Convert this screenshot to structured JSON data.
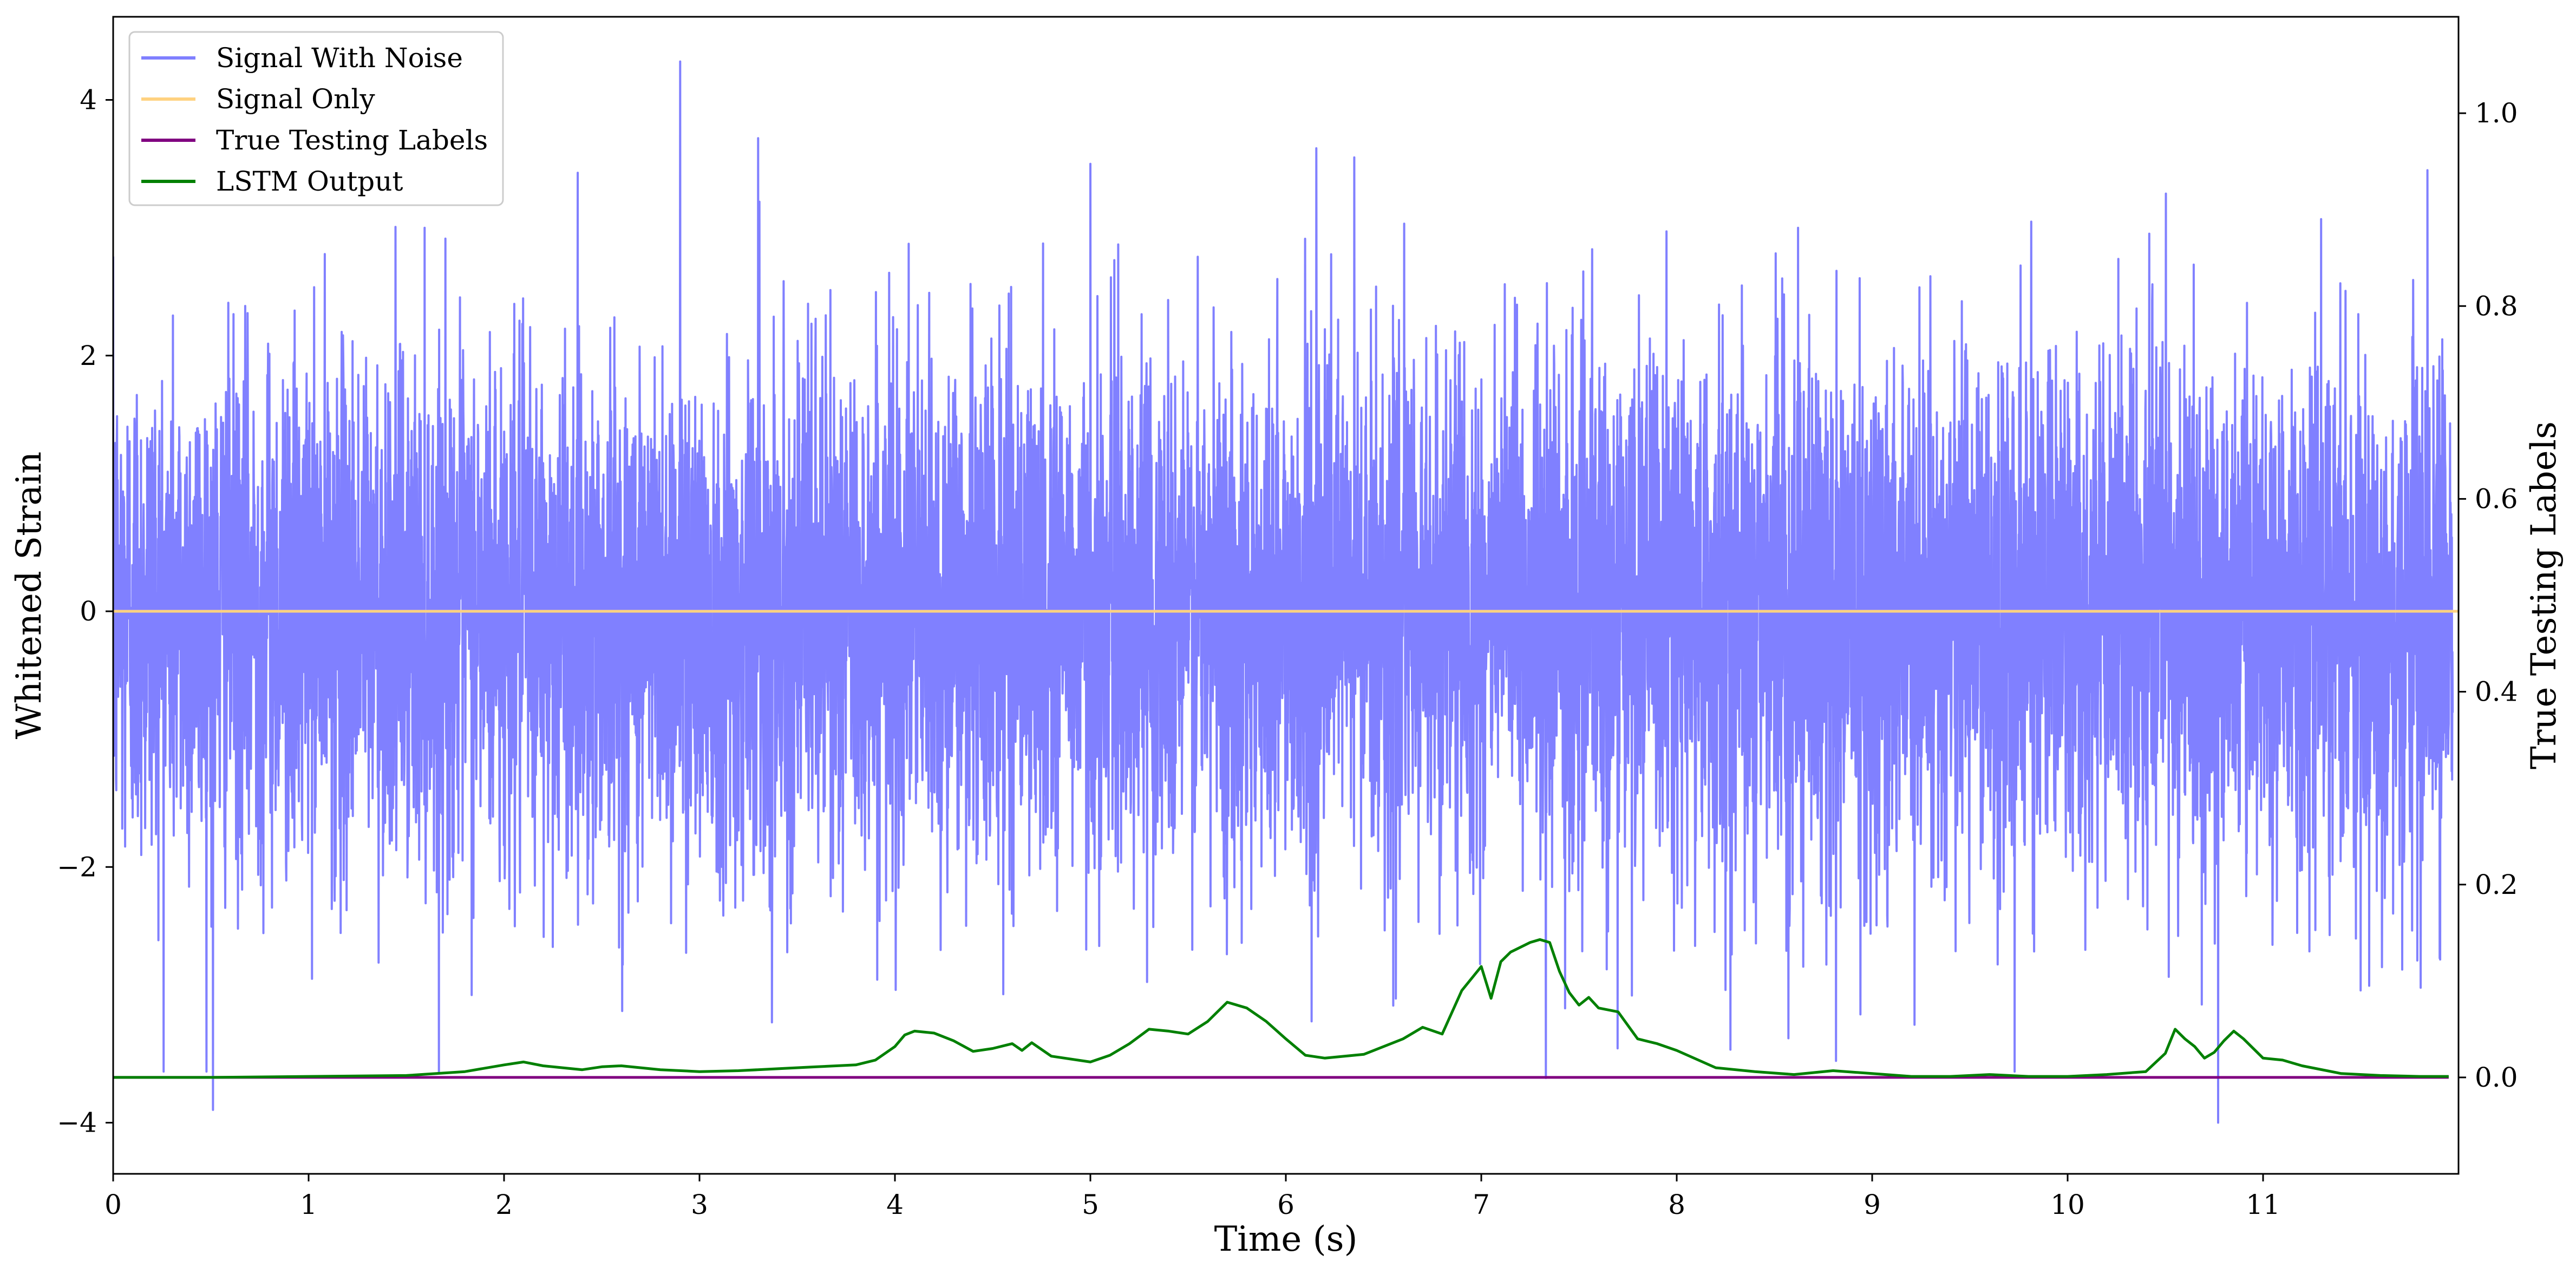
{
  "chart_data": {
    "type": "line",
    "xlabel": "Time (s)",
    "ylabel": "Whitened Strain",
    "y2label": "True Testing Labels",
    "xlim": [
      0,
      12
    ],
    "ylim": [
      -4.4,
      4.65
    ],
    "y2lim": [
      -0.1,
      1.1
    ],
    "xticks": [
      "0",
      "1",
      "2",
      "3",
      "4",
      "5",
      "6",
      "7",
      "8",
      "9",
      "10",
      "11"
    ],
    "yticks": [
      "−4",
      "−2",
      "0",
      "2",
      "4"
    ],
    "y2ticks": [
      "0.0",
      "0.2",
      "0.4",
      "0.6",
      "0.8",
      "1.0"
    ],
    "grid": false,
    "legend_position": "top-left",
    "series": [
      {
        "name": "Signal With Noise",
        "axis": "left",
        "color": "#8080ff",
        "noise_std": 1.0,
        "approx_range": [
          -3.9,
          4.3
        ],
        "peaks": [
          {
            "x": 0.51,
            "y": -3.9
          },
          {
            "x": 2.9,
            "y": 4.3
          },
          {
            "x": 3.3,
            "y": 3.7
          },
          {
            "x": 5.0,
            "y": 3.5
          },
          {
            "x": 6.35,
            "y": 3.55
          },
          {
            "x": 7.33,
            "y": -3.65
          },
          {
            "x": 10.77,
            "y": -4.0
          },
          {
            "x": 11.84,
            "y": 3.45
          }
        ]
      },
      {
        "name": "Signal Only",
        "axis": "left",
        "color": "#ffd280",
        "x": [
          0,
          12
        ],
        "y": [
          0,
          0
        ]
      },
      {
        "name": "True Testing Labels",
        "axis": "right",
        "color": "#800080",
        "x": [
          0,
          11.95
        ],
        "y": [
          0,
          0
        ]
      },
      {
        "name": "LSTM Output",
        "axis": "right",
        "color": "#008000",
        "x": [
          0,
          0.5,
          1.0,
          1.5,
          1.8,
          2.0,
          2.1,
          2.2,
          2.3,
          2.4,
          2.5,
          2.6,
          2.8,
          3.0,
          3.2,
          3.4,
          3.6,
          3.8,
          3.9,
          4.0,
          4.05,
          4.1,
          4.2,
          4.3,
          4.4,
          4.5,
          4.6,
          4.65,
          4.7,
          4.8,
          5.0,
          5.1,
          5.2,
          5.3,
          5.4,
          5.5,
          5.6,
          5.7,
          5.8,
          5.9,
          6.0,
          6.1,
          6.2,
          6.4,
          6.6,
          6.7,
          6.8,
          6.9,
          7.0,
          7.05,
          7.1,
          7.15,
          7.25,
          7.3,
          7.35,
          7.4,
          7.45,
          7.5,
          7.55,
          7.6,
          7.7,
          7.8,
          7.9,
          8.0,
          8.2,
          8.4,
          8.6,
          8.8,
          9.0,
          9.2,
          9.4,
          9.6,
          9.8,
          10.0,
          10.2,
          10.4,
          10.5,
          10.55,
          10.6,
          10.65,
          10.7,
          10.75,
          10.8,
          10.85,
          10.9,
          11.0,
          11.1,
          11.2,
          11.4,
          11.6,
          11.8,
          11.95
        ],
        "y": [
          0,
          0,
          0.001,
          0.002,
          0.006,
          0.013,
          0.016,
          0.012,
          0.01,
          0.008,
          0.011,
          0.012,
          0.008,
          0.006,
          0.007,
          0.009,
          0.011,
          0.013,
          0.018,
          0.032,
          0.044,
          0.048,
          0.046,
          0.038,
          0.027,
          0.03,
          0.035,
          0.028,
          0.036,
          0.022,
          0.016,
          0.023,
          0.035,
          0.05,
          0.048,
          0.045,
          0.058,
          0.078,
          0.072,
          0.058,
          0.04,
          0.023,
          0.02,
          0.024,
          0.04,
          0.052,
          0.045,
          0.09,
          0.115,
          0.082,
          0.12,
          0.13,
          0.14,
          0.143,
          0.14,
          0.11,
          0.088,
          0.075,
          0.083,
          0.072,
          0.068,
          0.04,
          0.035,
          0.028,
          0.01,
          0.006,
          0.003,
          0.007,
          0.004,
          0.001,
          0.001,
          0.003,
          0.001,
          0.001,
          0.003,
          0.006,
          0.025,
          0.05,
          0.04,
          0.032,
          0.02,
          0.026,
          0.038,
          0.048,
          0.04,
          0.02,
          0.018,
          0.012,
          0.004,
          0.002,
          0.001,
          0.001
        ]
      }
    ]
  }
}
